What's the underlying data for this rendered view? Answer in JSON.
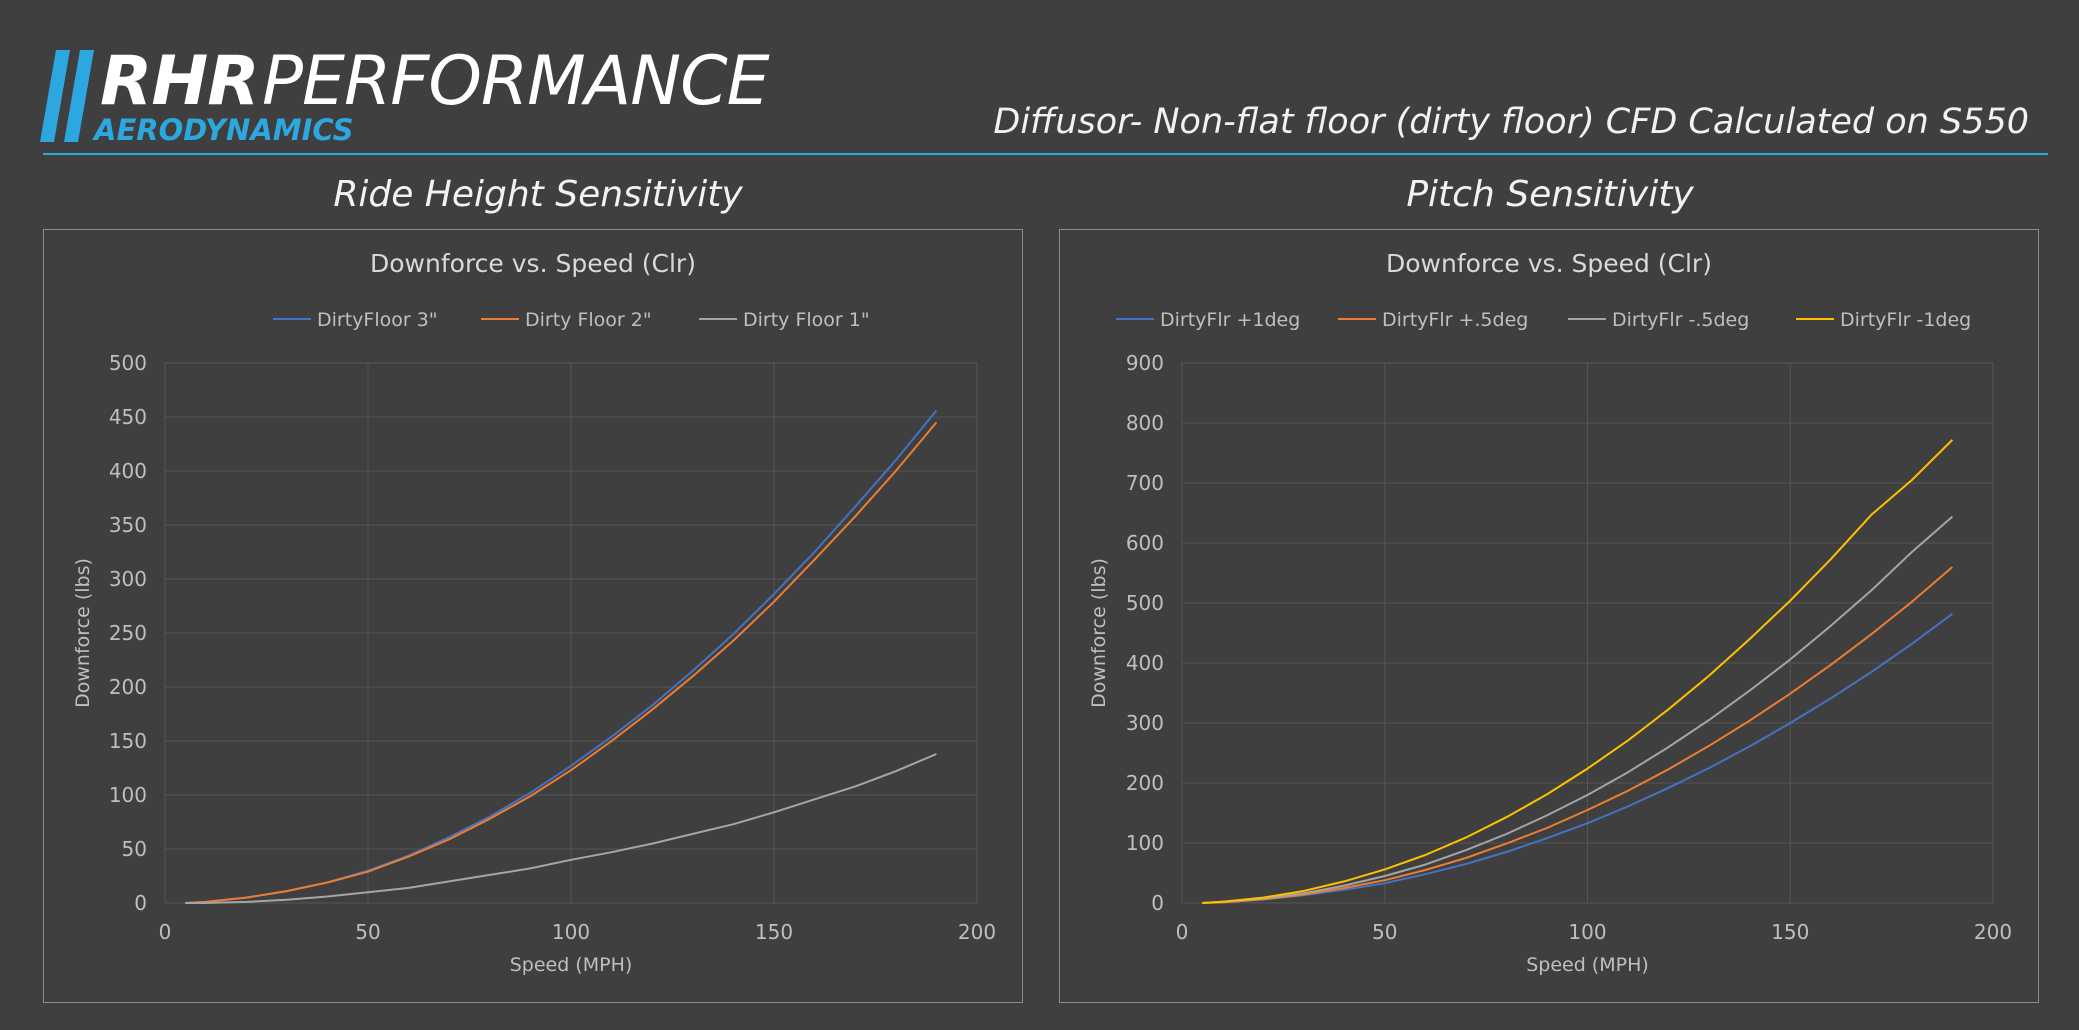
{
  "brand": {
    "name_bold": "RHR",
    "name_light": "PERFORMANCE",
    "sub": "AERODYNAMICS",
    "accent": "#2da7df"
  },
  "header": {
    "subtitle": "Diffusor- Non-flat floor (dirty floor) CFD Calculated on S550"
  },
  "sections": {
    "left_title": "Ride Height Sensitivity",
    "right_title": "Pitch Sensitivity"
  },
  "chart_data": [
    {
      "type": "line",
      "title": "Downforce vs. Speed (Clr)",
      "xlabel": "Speed (MPH)",
      "ylabel": "Downforce (lbs)",
      "xlim": [
        0,
        200
      ],
      "ylim": [
        0,
        500
      ],
      "xticks": [
        0,
        50,
        100,
        150,
        200
      ],
      "yticks": [
        0,
        50,
        100,
        150,
        200,
        250,
        300,
        350,
        400,
        450,
        500
      ],
      "grid": true,
      "legend": "top",
      "x": [
        5,
        10,
        20,
        30,
        40,
        50,
        60,
        70,
        80,
        90,
        100,
        110,
        120,
        130,
        140,
        150,
        160,
        170,
        180,
        190
      ],
      "series": [
        {
          "name": "DirtyFloor 3\"",
          "color": "#4472c4",
          "values": [
            0,
            1,
            5,
            11,
            19,
            30,
            44,
            61,
            80,
            102,
            127,
            154,
            183,
            215,
            249,
            286,
            325,
            367,
            410,
            456
          ]
        },
        {
          "name": "Dirty Floor 2\"",
          "color": "#ed7d31",
          "values": [
            0,
            1,
            5,
            11,
            19,
            29,
            43,
            59,
            78,
            99,
            123,
            150,
            179,
            210,
            243,
            279,
            318,
            358,
            400,
            445
          ]
        },
        {
          "name": "Dirty Floor 1\"",
          "color": "#a5a5a5",
          "values": [
            0,
            0,
            1,
            3,
            6,
            10,
            14,
            20,
            26,
            32,
            40,
            47,
            55,
            64,
            73,
            84,
            96,
            108,
            122,
            138
          ]
        }
      ]
    },
    {
      "type": "line",
      "title": "Downforce vs. Speed (Clr)",
      "xlabel": "Speed (MPH)",
      "ylabel": "Downforce (lbs)",
      "xlim": [
        0,
        200
      ],
      "ylim": [
        0,
        900
      ],
      "xticks": [
        0,
        50,
        100,
        150,
        200
      ],
      "yticks": [
        0,
        100,
        200,
        300,
        400,
        500,
        600,
        700,
        800,
        900
      ],
      "grid": true,
      "legend": "top",
      "x": [
        5,
        10,
        20,
        30,
        40,
        50,
        60,
        70,
        80,
        90,
        100,
        110,
        120,
        130,
        140,
        150,
        160,
        170,
        180,
        190
      ],
      "series": [
        {
          "name": "DirtyFlr +1deg",
          "color": "#4472c4",
          "values": [
            0,
            1,
            6,
            13,
            22,
            33,
            48,
            65,
            85,
            108,
            133,
            161,
            192,
            225,
            261,
            300,
            341,
            385,
            432,
            482
          ]
        },
        {
          "name": "DirtyFlr +.5deg",
          "color": "#ed7d31",
          "values": [
            0,
            1,
            6,
            14,
            25,
            38,
            55,
            75,
            99,
            125,
            155,
            187,
            223,
            262,
            304,
            349,
            397,
            448,
            502,
            560
          ]
        },
        {
          "name": "DirtyFlr -.5deg",
          "color": "#a5a5a5",
          "values": [
            0,
            2,
            7,
            16,
            29,
            45,
            64,
            88,
            115,
            146,
            180,
            218,
            260,
            305,
            354,
            406,
            462,
            521,
            585,
            644
          ]
        },
        {
          "name": "DirtyFlr -1deg",
          "color": "#ffc000",
          "values": [
            0,
            2,
            9,
            20,
            36,
            56,
            80,
            109,
            143,
            181,
            224,
            271,
            323,
            379,
            440,
            504,
            573,
            647,
            705,
            772
          ]
        }
      ]
    }
  ]
}
